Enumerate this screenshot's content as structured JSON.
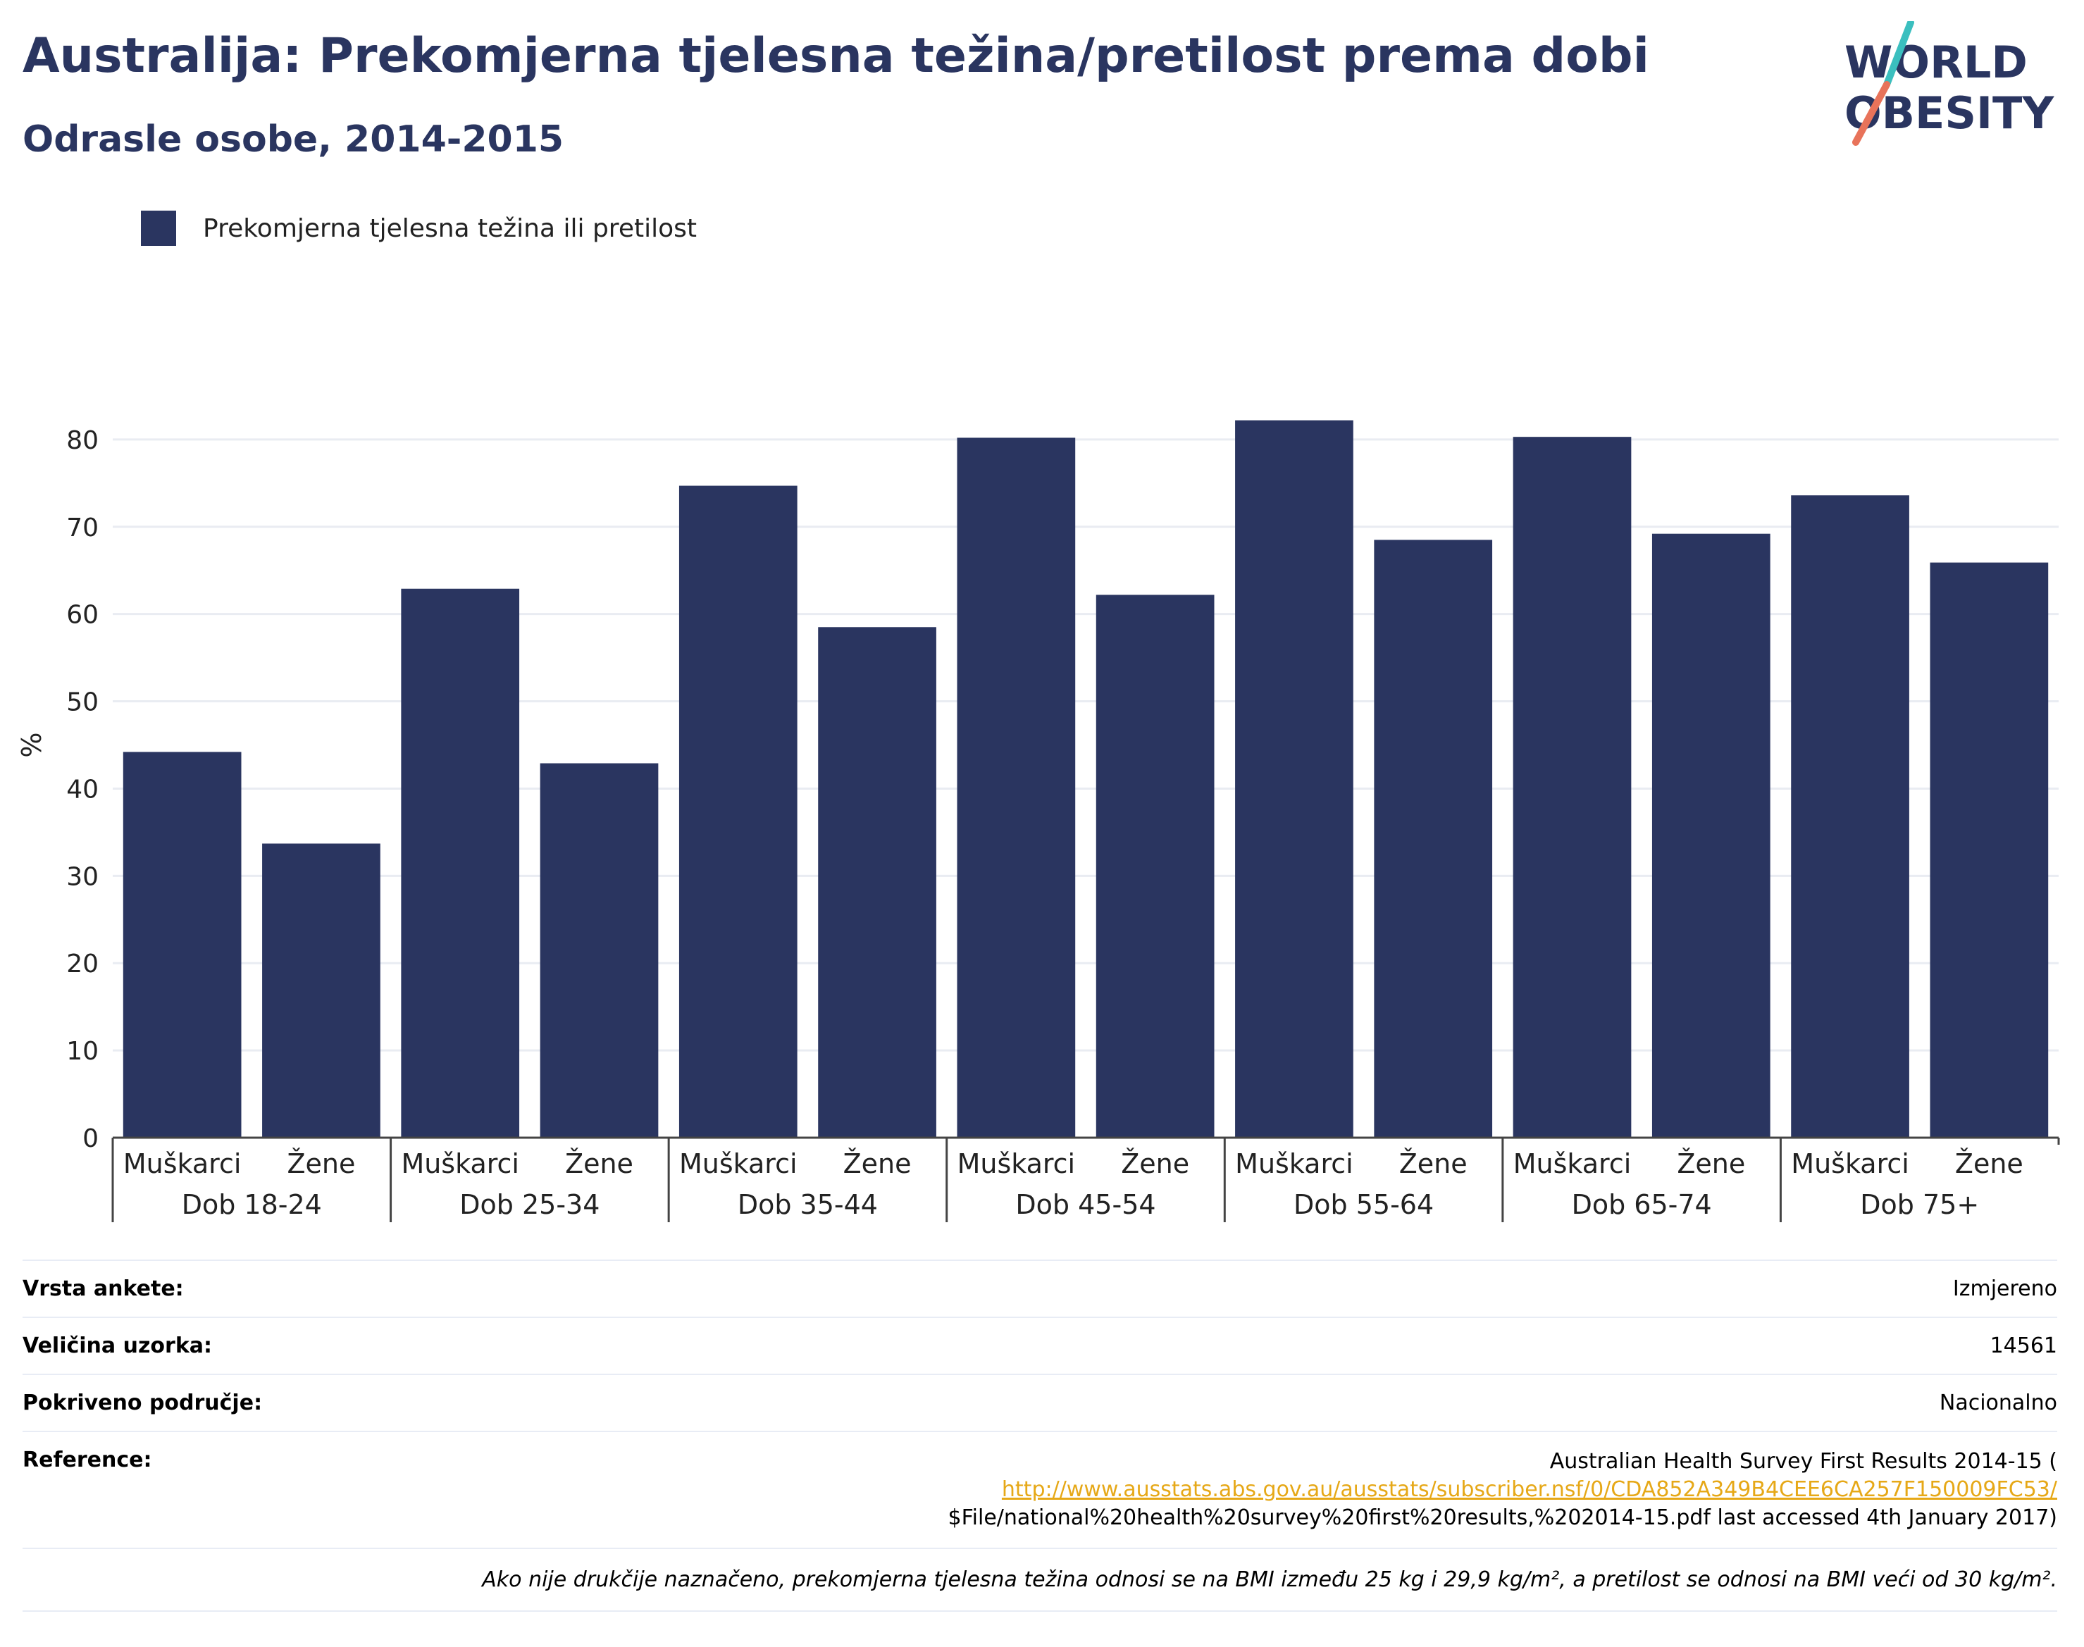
{
  "header": {
    "title": "Australija: Prekomjerna tjelesna težina/pretilost prema dobi",
    "subtitle": "Odrasle osobe, 2014-2015"
  },
  "logo": {
    "line1": "WORLD",
    "line2": "OBESITY",
    "colors": {
      "text": "#2a3560",
      "slash_top": "#3bbfbf",
      "slash_bottom": "#e8735a"
    }
  },
  "legend": {
    "label": "Prekomjerna tjelesna težina ili pretilost",
    "color": "#2a3560"
  },
  "chart_data": {
    "type": "bar",
    "ylabel": "%",
    "ylim": [
      0,
      90
    ],
    "yticks": [
      0,
      10,
      20,
      30,
      40,
      50,
      60,
      70,
      80
    ],
    "grid": true,
    "legend_position": "top-left",
    "bar_color": "#2a3560",
    "groups": [
      {
        "label": "Dob 18-24",
        "categories": [
          "Muškarci",
          "Žene"
        ],
        "values": [
          44.2,
          33.7
        ]
      },
      {
        "label": "Dob 25-34",
        "categories": [
          "Muškarci",
          "Žene"
        ],
        "values": [
          62.9,
          42.9
        ]
      },
      {
        "label": "Dob 35-44",
        "categories": [
          "Muškarci",
          "Žene"
        ],
        "values": [
          74.7,
          58.5
        ]
      },
      {
        "label": "Dob 45-54",
        "categories": [
          "Muškarci",
          "Žene"
        ],
        "values": [
          80.2,
          62.2
        ]
      },
      {
        "label": "Dob 55-64",
        "categories": [
          "Muškarci",
          "Žene"
        ],
        "values": [
          82.2,
          68.5
        ]
      },
      {
        "label": "Dob 65-74",
        "categories": [
          "Muškarci",
          "Žene"
        ],
        "values": [
          80.3,
          69.2
        ]
      },
      {
        "label": "Dob 75+",
        "categories": [
          "Muškarci",
          "Žene"
        ],
        "values": [
          73.6,
          65.9
        ]
      }
    ]
  },
  "meta": {
    "survey_type": {
      "label": "Vrsta ankete:",
      "value": "Izmjereno"
    },
    "sample_size": {
      "label": "Veličina uzorka:",
      "value": "14561"
    },
    "coverage": {
      "label": "Pokriveno područje:",
      "value": "Nacionalno"
    },
    "reference": {
      "label": "Reference:",
      "line1": "Australian Health Survey First Results 2014-15 (",
      "link": "http://www.ausstats.abs.gov.au/ausstats/subscriber.nsf/0/CDA852A349B4CEE6CA257F150009FC53/",
      "line3": "$File/national%20health%20survey%20first%20results,%202014-15.pdf last accessed 4th January 2017)"
    },
    "note": "Ako nije drukčije naznačeno, prekomjerna tjelesna težina odnosi se na BMI između 25 kg i 29,9 kg/m², a pretilost se odnosi na BMI veći od 30 kg/m²."
  }
}
